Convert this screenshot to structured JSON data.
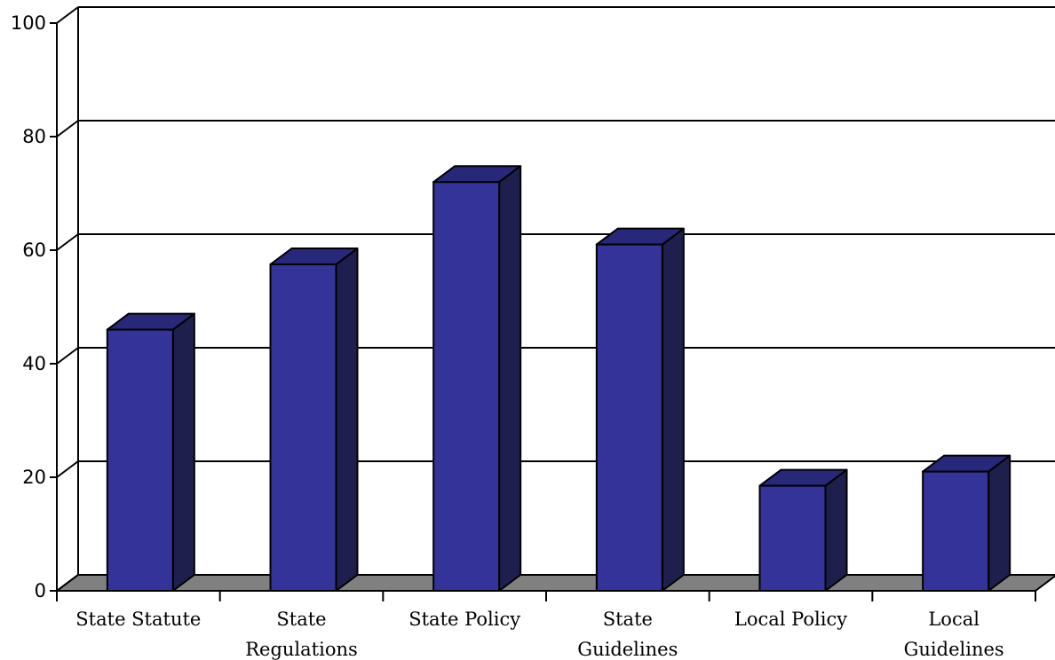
{
  "chart_data": {
    "type": "bar",
    "style": "3d",
    "categories": [
      [
        "State Statute"
      ],
      [
        "State",
        "Regulations"
      ],
      [
        "State Policy"
      ],
      [
        "State",
        "Guidelines"
      ],
      [
        "Local Policy"
      ],
      [
        "Local",
        "Guidelines"
      ]
    ],
    "values": [
      46,
      57.5,
      72,
      61,
      18.5,
      21
    ],
    "ylim": [
      0,
      100
    ],
    "yticks": [
      "0",
      "20",
      "40",
      "60",
      "80",
      "100"
    ],
    "grid": true,
    "legend": "none",
    "colors": {
      "bar_front": "#333399",
      "bar_side": "#1f1f4d",
      "bar_top": "#28287a",
      "floor": "#808080",
      "wall": "#ffffff",
      "line": "#000000"
    }
  }
}
